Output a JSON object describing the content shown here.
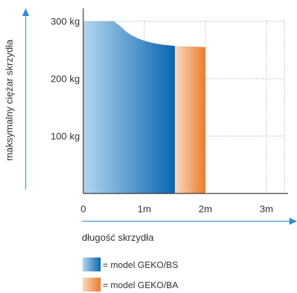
{
  "chart_data": {
    "type": "area",
    "ylabel": "maksymalny ciężar skrzydła",
    "xlabel": "długość skrzydła",
    "x_ticks": [
      {
        "value": 0,
        "label": "0"
      },
      {
        "value": 1,
        "label": "1m"
      },
      {
        "value": 2,
        "label": "2m"
      },
      {
        "value": 3,
        "label": "3m"
      }
    ],
    "y_ticks": [
      {
        "value": 100,
        "label": "100 kg"
      },
      {
        "value": 200,
        "label": "200 kg"
      },
      {
        "value": 300,
        "label": "300 kg"
      }
    ],
    "xlim": [
      0,
      3.2
    ],
    "ylim": [
      0,
      300
    ],
    "grid": true,
    "series": [
      {
        "name": "= model GEKO/BS",
        "color_light": "#b4d6f0",
        "color_dark": "#0a66b0",
        "points": [
          [
            0,
            300
          ],
          [
            0.5,
            300
          ],
          [
            0.6,
            292
          ],
          [
            0.7,
            282
          ],
          [
            0.8,
            275
          ],
          [
            0.9,
            270
          ],
          [
            1.0,
            266
          ],
          [
            1.1,
            263
          ],
          [
            1.2,
            261
          ],
          [
            1.3,
            259
          ],
          [
            1.5,
            257
          ]
        ]
      },
      {
        "name": "= model GEKO/BA",
        "color_light": "#f7dcc2",
        "color_dark": "#ec7a2a",
        "points": [
          [
            1.5,
            257
          ],
          [
            1.7,
            256
          ],
          [
            2.0,
            255
          ]
        ]
      }
    ],
    "legend_position": "bottom-left",
    "axis_color": "#2d8fd5"
  }
}
